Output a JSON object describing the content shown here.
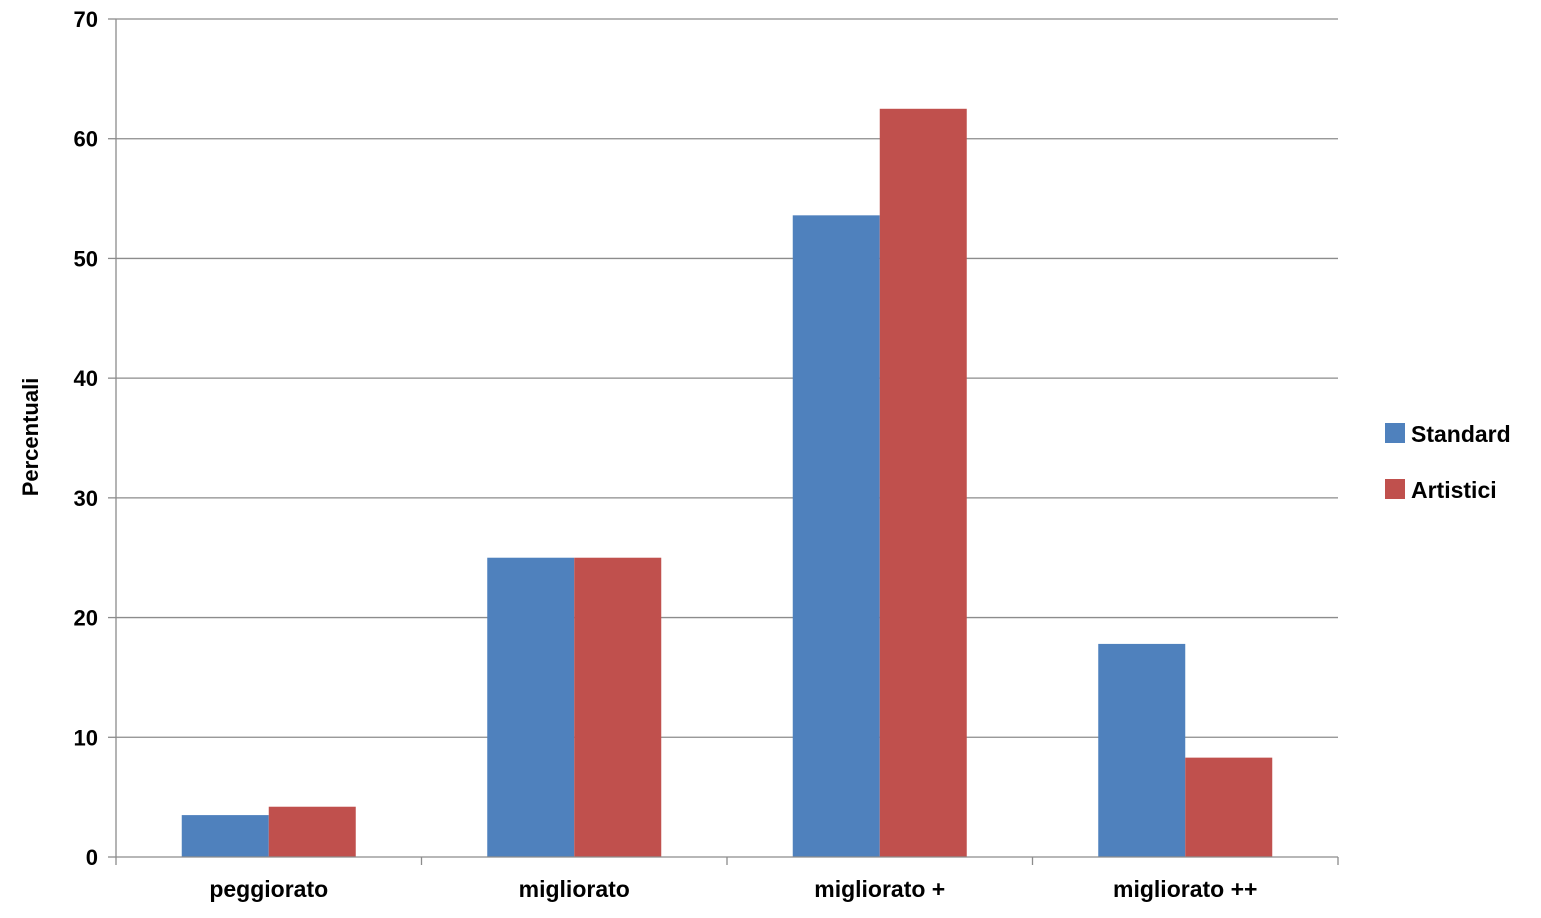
{
  "chart_data": {
    "type": "bar",
    "title": "",
    "xlabel": "",
    "ylabel": "Percentuali",
    "ylim": [
      0,
      70
    ],
    "yticks": [
      0,
      10,
      20,
      30,
      40,
      50,
      60,
      70
    ],
    "grid": true,
    "legend_position": "right",
    "categories": [
      "peggiorato",
      "migliorato",
      "migliorato +",
      "migliorato ++"
    ],
    "series": [
      {
        "name": "Standard",
        "color": "#4f81bd",
        "values": [
          3.5,
          25.0,
          53.6,
          17.8
        ]
      },
      {
        "name": "Artistici",
        "color": "#c0504d",
        "values": [
          4.2,
          25.0,
          62.5,
          8.3
        ]
      }
    ]
  }
}
